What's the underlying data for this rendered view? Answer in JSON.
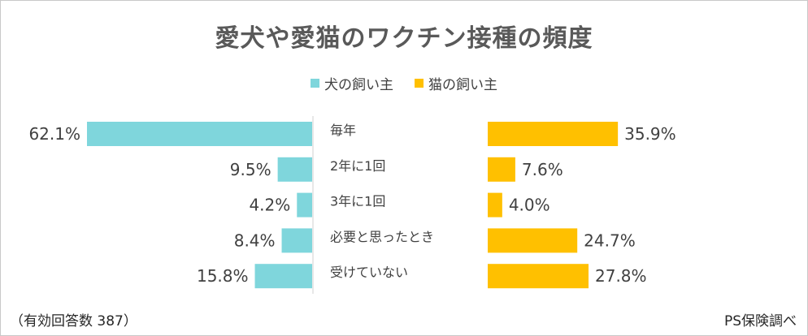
{
  "chart_data": {
    "type": "bar",
    "title": "愛犬や愛猫のワクチン接種の頻度",
    "categories": [
      "毎年",
      "2年に1回",
      "3年に1回",
      "必要と思ったとき",
      "受けていない"
    ],
    "series": [
      {
        "name": "犬の飼い主",
        "values": [
          62.1,
          9.5,
          4.2,
          8.4,
          15.8
        ],
        "labels": [
          "62.1%",
          "9.5%",
          "4.2%",
          "8.4%",
          "15.8%"
        ],
        "color": "#7fd6dc"
      },
      {
        "name": "猫の飼い主",
        "values": [
          35.9,
          7.6,
          4.0,
          24.7,
          27.8
        ],
        "labels": [
          "35.9%",
          "7.6%",
          "4.0%",
          "24.7%",
          "27.8%"
        ],
        "color": "#ffc000"
      }
    ],
    "xlim": [
      0,
      100
    ],
    "footnote": "（有効回答数 387）",
    "source": "PS保険調べ"
  }
}
